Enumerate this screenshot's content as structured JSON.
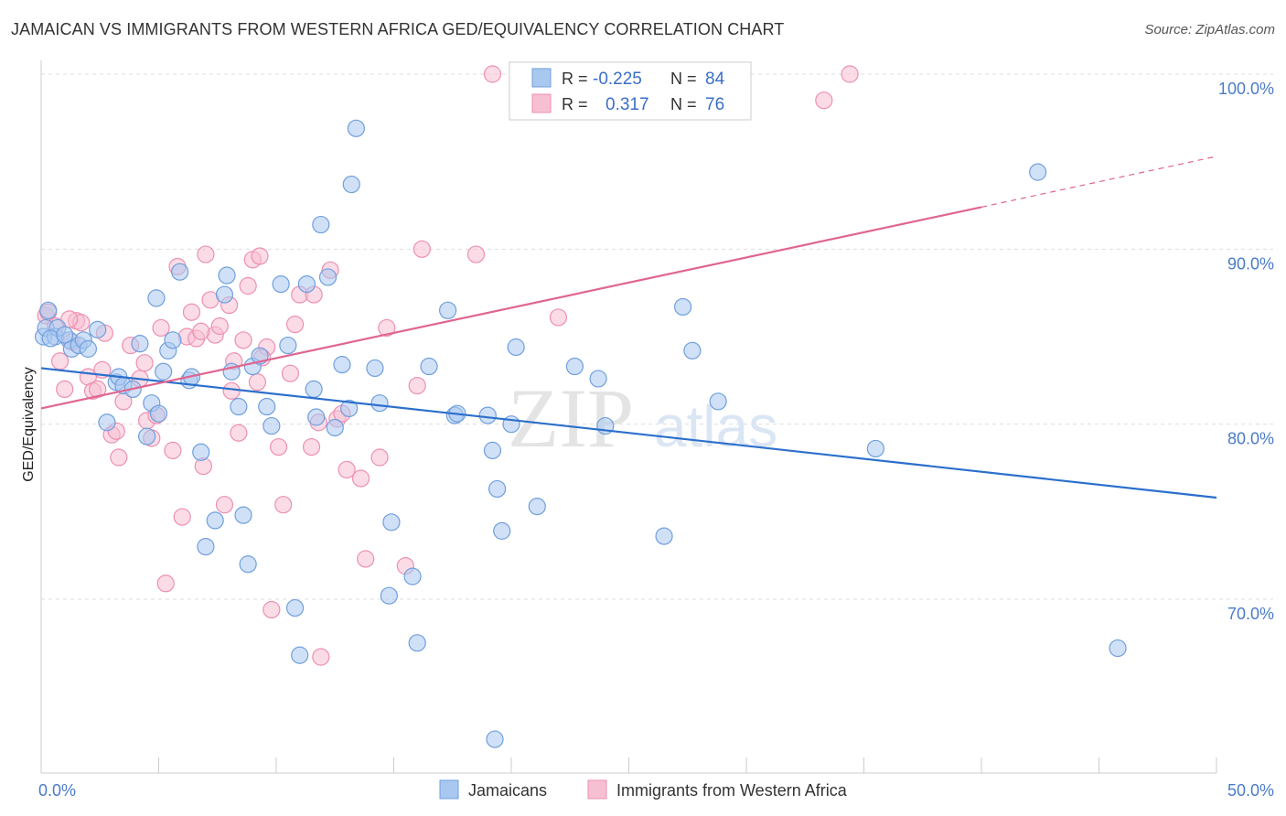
{
  "header": {
    "title": "JAMAICAN VS IMMIGRANTS FROM WESTERN AFRICA GED/EQUIVALENCY CORRELATION CHART",
    "source": "Source: ZipAtlas.com"
  },
  "watermark": {
    "zip": "ZIP",
    "atlas": "atlas"
  },
  "legend": {
    "row1": {
      "r_label": "R =",
      "r_value": "-0.225",
      "n_label": "N =",
      "n_value": "84"
    },
    "row2": {
      "r_label": "R =",
      "r_value": "0.317",
      "n_label": "N =",
      "n_value": "76"
    }
  },
  "colors": {
    "blue_fill": "#a9c8f0",
    "blue_stroke": "#6f9fde",
    "blue_line": "#2b6fcc",
    "pink_fill": "#f7c0d2",
    "pink_stroke": "#ee8fb0",
    "pink_line": "#e06590",
    "axis_label": "#4a7bc8",
    "grid": "#dddddd"
  },
  "chart_data": {
    "type": "scatter",
    "title": "JAMAICAN VS IMMIGRANTS FROM WESTERN AFRICA GED/EQUIVALENCY CORRELATION CHART",
    "xlabel": "",
    "ylabel": "GED/Equivalency",
    "xlim": [
      0,
      50
    ],
    "ylim": [
      60,
      102
    ],
    "x_tick_labels": [
      "0.0%",
      "50.0%"
    ],
    "y_tick_labels": [
      "100.0%",
      "90.0%",
      "80.0%",
      "70.0%"
    ],
    "y_ticks": [
      100,
      90,
      80,
      70
    ],
    "grid": true,
    "legend_position": "bottom",
    "series": [
      {
        "name": "Jamaicans",
        "r": -0.225,
        "n": 84,
        "trend": {
          "x": [
            0,
            50
          ],
          "y": [
            83.2,
            75.8
          ]
        },
        "points": [
          [
            0.1,
            85
          ],
          [
            0.2,
            85.5
          ],
          [
            0.3,
            86.5
          ],
          [
            0.6,
            85
          ],
          [
            0.7,
            85.5
          ],
          [
            1.2,
            84.8
          ],
          [
            1.3,
            84.3
          ],
          [
            1.6,
            84.5
          ],
          [
            1.8,
            84.8
          ],
          [
            2.0,
            84.3
          ],
          [
            2.4,
            85.4
          ],
          [
            2.8,
            80.1
          ],
          [
            3.2,
            82.4
          ],
          [
            3.3,
            82.7
          ],
          [
            3.5,
            82.2
          ],
          [
            3.9,
            82
          ],
          [
            4.2,
            84.6
          ],
          [
            4.5,
            79.3
          ],
          [
            4.7,
            81.2
          ],
          [
            4.9,
            87.2
          ],
          [
            5.0,
            80.6
          ],
          [
            5.2,
            83
          ],
          [
            5.4,
            84.2
          ],
          [
            5.6,
            84.8
          ],
          [
            5.9,
            88.7
          ],
          [
            6.3,
            82.5
          ],
          [
            6.4,
            82.7
          ],
          [
            6.8,
            78.4
          ],
          [
            7.0,
            73
          ],
          [
            7.4,
            74.5
          ],
          [
            7.8,
            87.4
          ],
          [
            7.9,
            88.5
          ],
          [
            8.1,
            83
          ],
          [
            8.4,
            81
          ],
          [
            8.6,
            74.8
          ],
          [
            8.8,
            72
          ],
          [
            9.0,
            83.3
          ],
          [
            9.3,
            83.9
          ],
          [
            9.6,
            81
          ],
          [
            9.8,
            79.9
          ],
          [
            10.2,
            88
          ],
          [
            10.5,
            84.5
          ],
          [
            10.8,
            69.5
          ],
          [
            11.0,
            66.8
          ],
          [
            11.3,
            88
          ],
          [
            11.6,
            82
          ],
          [
            11.7,
            80.4
          ],
          [
            11.9,
            91.4
          ],
          [
            12.2,
            88.4
          ],
          [
            12.5,
            79.8
          ],
          [
            12.8,
            83.4
          ],
          [
            13.1,
            80.9
          ],
          [
            13.2,
            93.7
          ],
          [
            13.4,
            96.9
          ],
          [
            14.2,
            83.2
          ],
          [
            14.4,
            81.2
          ],
          [
            14.8,
            70.2
          ],
          [
            14.9,
            74.4
          ],
          [
            15.8,
            71.3
          ],
          [
            16.0,
            67.5
          ],
          [
            16.5,
            83.3
          ],
          [
            17.3,
            86.5
          ],
          [
            17.6,
            80.5
          ],
          [
            17.7,
            80.6
          ],
          [
            19.0,
            80.5
          ],
          [
            19.2,
            78.5
          ],
          [
            19.4,
            76.3
          ],
          [
            19.6,
            73.9
          ],
          [
            19.3,
            62
          ],
          [
            20.0,
            80
          ],
          [
            20.2,
            84.4
          ],
          [
            21.1,
            75.3
          ],
          [
            22.7,
            83.3
          ],
          [
            23.7,
            82.6
          ],
          [
            24.0,
            79.9
          ],
          [
            26.5,
            73.6
          ],
          [
            27.3,
            86.7
          ],
          [
            27.7,
            84.2
          ],
          [
            28.8,
            81.3
          ],
          [
            35.5,
            78.6
          ],
          [
            42.4,
            94.4
          ],
          [
            45.8,
            67.2
          ],
          [
            0.4,
            84.9
          ],
          [
            1.0,
            85.1
          ]
        ]
      },
      {
        "name": "Immigrants from Western Africa",
        "r": 0.317,
        "n": 76,
        "trend": {
          "x": [
            0,
            40
          ],
          "y": [
            80.9,
            92.4
          ]
        },
        "trend_dashed": {
          "x": [
            40,
            50
          ],
          "y": [
            92.4,
            95.3
          ]
        },
        "points": [
          [
            0.2,
            86.2
          ],
          [
            0.3,
            86.4
          ],
          [
            0.6,
            85.6
          ],
          [
            0.8,
            83.6
          ],
          [
            1.0,
            82
          ],
          [
            1.3,
            84.7
          ],
          [
            1.5,
            85.9
          ],
          [
            1.7,
            85.8
          ],
          [
            2.0,
            82.7
          ],
          [
            2.2,
            81.9
          ],
          [
            2.4,
            82
          ],
          [
            2.7,
            85.2
          ],
          [
            3.0,
            79.4
          ],
          [
            3.2,
            79.6
          ],
          [
            3.3,
            78.1
          ],
          [
            3.5,
            81.3
          ],
          [
            3.8,
            84.5
          ],
          [
            4.2,
            82.6
          ],
          [
            4.4,
            83.5
          ],
          [
            4.5,
            80.2
          ],
          [
            4.7,
            79.2
          ],
          [
            5.1,
            85.5
          ],
          [
            5.3,
            70.9
          ],
          [
            5.6,
            78.5
          ],
          [
            5.8,
            89
          ],
          [
            6.0,
            74.7
          ],
          [
            6.2,
            85
          ],
          [
            6.4,
            86.4
          ],
          [
            6.6,
            84.9
          ],
          [
            6.9,
            77.6
          ],
          [
            7.0,
            89.7
          ],
          [
            7.2,
            87.1
          ],
          [
            7.4,
            85.1
          ],
          [
            7.6,
            85.6
          ],
          [
            7.8,
            75.4
          ],
          [
            8.0,
            86.8
          ],
          [
            8.2,
            83.6
          ],
          [
            8.4,
            79.5
          ],
          [
            8.6,
            84.8
          ],
          [
            8.8,
            87.9
          ],
          [
            9.0,
            89.4
          ],
          [
            9.2,
            82.4
          ],
          [
            9.3,
            89.6
          ],
          [
            9.6,
            84.4
          ],
          [
            9.8,
            69.4
          ],
          [
            10.1,
            78.7
          ],
          [
            10.3,
            75.4
          ],
          [
            10.6,
            82.9
          ],
          [
            10.8,
            85.7
          ],
          [
            11.0,
            87.4
          ],
          [
            11.5,
            78.7
          ],
          [
            11.6,
            87.4
          ],
          [
            11.8,
            80.1
          ],
          [
            11.9,
            66.7
          ],
          [
            12.3,
            88.8
          ],
          [
            12.6,
            80.3
          ],
          [
            12.8,
            80.6
          ],
          [
            13.0,
            77.4
          ],
          [
            13.6,
            76.9
          ],
          [
            13.8,
            72.3
          ],
          [
            14.4,
            78.1
          ],
          [
            14.7,
            85.5
          ],
          [
            15.5,
            71.9
          ],
          [
            16.0,
            82.2
          ],
          [
            16.2,
            90
          ],
          [
            19.2,
            100
          ],
          [
            18.5,
            89.7
          ],
          [
            22.0,
            86.1
          ],
          [
            33.3,
            98.5
          ],
          [
            34.4,
            100
          ],
          [
            1.2,
            86
          ],
          [
            4.9,
            80.5
          ],
          [
            6.8,
            85.3
          ],
          [
            9.4,
            83.8
          ],
          [
            2.6,
            83.1
          ],
          [
            8.1,
            81.9
          ]
        ]
      }
    ]
  },
  "bottom_legend": {
    "items": [
      "Jamaicans",
      "Immigrants from Western Africa"
    ]
  }
}
